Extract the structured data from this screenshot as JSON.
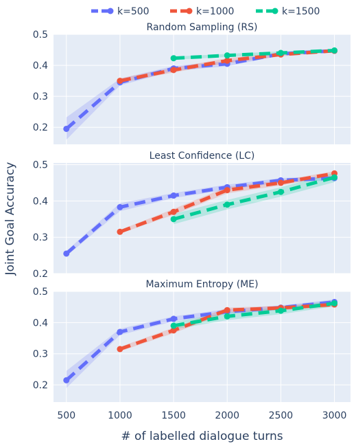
{
  "chart_data": {
    "type": "line",
    "x_axis_label": "# of labelled dialogue turns",
    "y_axis_label": "Joint Goal Accuracy",
    "x_ticks": [
      500,
      1000,
      1500,
      2000,
      2500,
      3000
    ],
    "x_range": [
      380,
      3150
    ],
    "legend": {
      "placement": "top-center",
      "entries": [
        {
          "name": "k=500",
          "color": "#636efa"
        },
        {
          "name": "k=1000",
          "color": "#ef553b"
        },
        {
          "name": "k=1500",
          "color": "#00cc96"
        }
      ]
    },
    "grid": true,
    "panels": [
      {
        "title": "Random Sampling (RS)",
        "ylim": [
          0.145,
          0.5
        ],
        "y_ticks": [
          0.2,
          0.3,
          0.4,
          0.5
        ],
        "series": [
          {
            "name": "k=500",
            "color": "#636efa",
            "x": [
              500,
              1000,
              1500,
              2000,
              2500,
              3000
            ],
            "y": [
              0.195,
              0.345,
              0.39,
              0.405,
              0.437,
              0.447
            ],
            "lower": [
              0.16,
              0.335,
              0.382,
              0.397,
              0.432,
              0.442
            ],
            "upper": [
              0.232,
              0.357,
              0.398,
              0.414,
              0.443,
              0.452
            ]
          },
          {
            "name": "k=1000",
            "color": "#ef553b",
            "x": [
              1000,
              1500,
              2000,
              2500,
              3000
            ],
            "y": [
              0.35,
              0.385,
              0.415,
              0.435,
              0.447
            ],
            "lower": [
              0.343,
              0.377,
              0.407,
              0.429,
              0.442
            ],
            "upper": [
              0.358,
              0.393,
              0.423,
              0.441,
              0.452
            ]
          },
          {
            "name": "k=1500",
            "color": "#00cc96",
            "x": [
              1500,
              2000,
              2500,
              3000
            ],
            "y": [
              0.423,
              0.432,
              0.44,
              0.448
            ],
            "lower": [
              0.418,
              0.427,
              0.435,
              0.443
            ],
            "upper": [
              0.428,
              0.437,
              0.445,
              0.453
            ]
          }
        ]
      },
      {
        "title": "Least Confidence (LC)",
        "ylim": [
          0.2,
          0.505
        ],
        "y_ticks": [
          0.2,
          0.3,
          0.4,
          0.5
        ],
        "series": [
          {
            "name": "k=500",
            "color": "#636efa",
            "x": [
              500,
              1000,
              1500,
              2000,
              2500,
              3000
            ],
            "y": [
              0.255,
              0.383,
              0.415,
              0.438,
              0.457,
              0.463
            ],
            "lower": [
              0.248,
              0.372,
              0.408,
              0.431,
              0.451,
              0.457
            ],
            "upper": [
              0.262,
              0.394,
              0.422,
              0.445,
              0.463,
              0.469
            ]
          },
          {
            "name": "k=1000",
            "color": "#ef553b",
            "x": [
              1000,
              1500,
              2000,
              2500,
              3000
            ],
            "y": [
              0.315,
              0.37,
              0.43,
              0.45,
              0.476
            ],
            "lower": [
              0.31,
              0.362,
              0.421,
              0.443,
              0.47
            ],
            "upper": [
              0.32,
              0.378,
              0.439,
              0.457,
              0.482
            ]
          },
          {
            "name": "k=1500",
            "color": "#00cc96",
            "x": [
              1500,
              2000,
              2500,
              3000
            ],
            "y": [
              0.35,
              0.39,
              0.425,
              0.465
            ],
            "lower": [
              0.336,
              0.377,
              0.412,
              0.452
            ],
            "upper": [
              0.364,
              0.403,
              0.438,
              0.478
            ]
          }
        ]
      },
      {
        "title": "Maximum Entropy (ME)",
        "ylim": [
          0.145,
          0.5
        ],
        "y_ticks": [
          0.2,
          0.3,
          0.4,
          0.5
        ],
        "series": [
          {
            "name": "k=500",
            "color": "#636efa",
            "x": [
              500,
              1000,
              1500,
              2000,
              2500,
              3000
            ],
            "y": [
              0.215,
              0.37,
              0.412,
              0.435,
              0.448,
              0.466
            ],
            "lower": [
              0.19,
              0.36,
              0.404,
              0.427,
              0.441,
              0.458
            ],
            "upper": [
              0.245,
              0.38,
              0.42,
              0.443,
              0.455,
              0.474
            ]
          },
          {
            "name": "k=1000",
            "color": "#ef553b",
            "x": [
              1000,
              1500,
              2000,
              2500,
              3000
            ],
            "y": [
              0.315,
              0.375,
              0.44,
              0.447,
              0.458
            ],
            "lower": [
              0.308,
              0.366,
              0.432,
              0.44,
              0.451
            ],
            "upper": [
              0.322,
              0.384,
              0.448,
              0.454,
              0.465
            ]
          },
          {
            "name": "k=1500",
            "color": "#00cc96",
            "x": [
              1500,
              2000,
              2500,
              3000
            ],
            "y": [
              0.39,
              0.42,
              0.438,
              0.462
            ],
            "lower": [
              0.378,
              0.408,
              0.427,
              0.452
            ],
            "upper": [
              0.402,
              0.432,
              0.449,
              0.472
            ]
          }
        ]
      }
    ]
  }
}
